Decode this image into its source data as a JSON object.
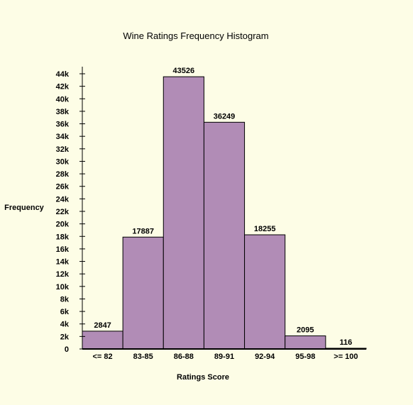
{
  "chart_data": {
    "type": "bar",
    "title": "Wine Ratings Frequency Histogram",
    "xlabel": "Ratings Score",
    "ylabel": "Frequency",
    "categories": [
      "<= 82",
      "83-85",
      "86-88",
      "89-91",
      "92-94",
      "95-98",
      ">= 100"
    ],
    "values": [
      2847,
      17887,
      43526,
      36249,
      18255,
      2095,
      116
    ],
    "ylim": [
      0,
      44000
    ],
    "ytick_step": 2000,
    "ytick_labels": [
      "0",
      "2k",
      "4k",
      "6k",
      "8k",
      "10k",
      "12k",
      "14k",
      "16k",
      "18k",
      "20k",
      "22k",
      "24k",
      "26k",
      "28k",
      "30k",
      "32k",
      "34k",
      "36k",
      "38k",
      "40k",
      "42k",
      "44k"
    ],
    "grid": false,
    "legend": "none",
    "colors": {
      "background": "#fdfde6",
      "bar_fill": "#b18cb6",
      "bar_stroke": "#000000",
      "axis": "#000000"
    }
  }
}
